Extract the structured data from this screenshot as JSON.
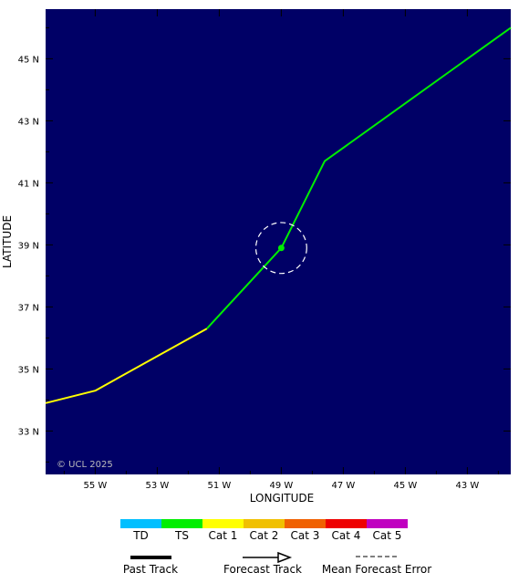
{
  "map": {
    "xlabel": "LONGITUDE",
    "ylabel": "LATITUDE",
    "copyright": "© UCL 2025",
    "background_color": "#000066",
    "lon_range": [
      -56.6,
      -41.6
    ],
    "lat_range": [
      31.6,
      46.6
    ],
    "lon_ticks": [
      {
        "value": -55,
        "label": "55 W"
      },
      {
        "value": -53,
        "label": "53 W"
      },
      {
        "value": -51,
        "label": "51 W"
      },
      {
        "value": -49,
        "label": "49 W"
      },
      {
        "value": -47,
        "label": "47 W"
      },
      {
        "value": -45,
        "label": "45 W"
      },
      {
        "value": -43,
        "label": "43 W"
      }
    ],
    "lat_ticks": [
      {
        "value": 45,
        "label": "45 N"
      },
      {
        "value": 43,
        "label": "43 N"
      },
      {
        "value": 41,
        "label": "41 N"
      },
      {
        "value": 39,
        "label": "39 N"
      },
      {
        "value": 37,
        "label": "37 N"
      },
      {
        "value": 35,
        "label": "35 N"
      },
      {
        "value": 33,
        "label": "33 N"
      }
    ],
    "track_segments": [
      {
        "category": "Cat 1",
        "color": "#ffff00",
        "points": [
          [
            -56.6,
            33.9
          ],
          [
            -55.0,
            34.3
          ],
          [
            -51.4,
            36.3
          ]
        ]
      },
      {
        "category": "TS",
        "color": "#00ee00",
        "points": [
          [
            -51.4,
            36.3
          ],
          [
            -49.0,
            38.9
          ]
        ]
      },
      {
        "category": "TS",
        "color": "#00ee00",
        "points": [
          [
            -49.0,
            38.9
          ],
          [
            -47.6,
            41.7
          ],
          [
            -41.6,
            46.0
          ]
        ]
      }
    ],
    "current_position": {
      "lon": -49.0,
      "lat": 38.9,
      "color": "#00ee00"
    },
    "forecast_error_circle": {
      "lon": -49.0,
      "lat": 38.9,
      "radius_deg": 0.82,
      "color": "#ffffff"
    }
  },
  "legend": {
    "categories": [
      {
        "label": "TD",
        "color": "#00bfff"
      },
      {
        "label": "TS",
        "color": "#00ee00"
      },
      {
        "label": "Cat 1",
        "color": "#ffff00"
      },
      {
        "label": "Cat 2",
        "color": "#f0c000"
      },
      {
        "label": "Cat 3",
        "color": "#f06000"
      },
      {
        "label": "Cat 4",
        "color": "#ee0000"
      },
      {
        "label": "Cat 5",
        "color": "#c000c0"
      }
    ],
    "past_track_label": "Past Track",
    "forecast_track_label": "Forecast Track",
    "forecast_error_label": "Mean Forecast Error"
  }
}
